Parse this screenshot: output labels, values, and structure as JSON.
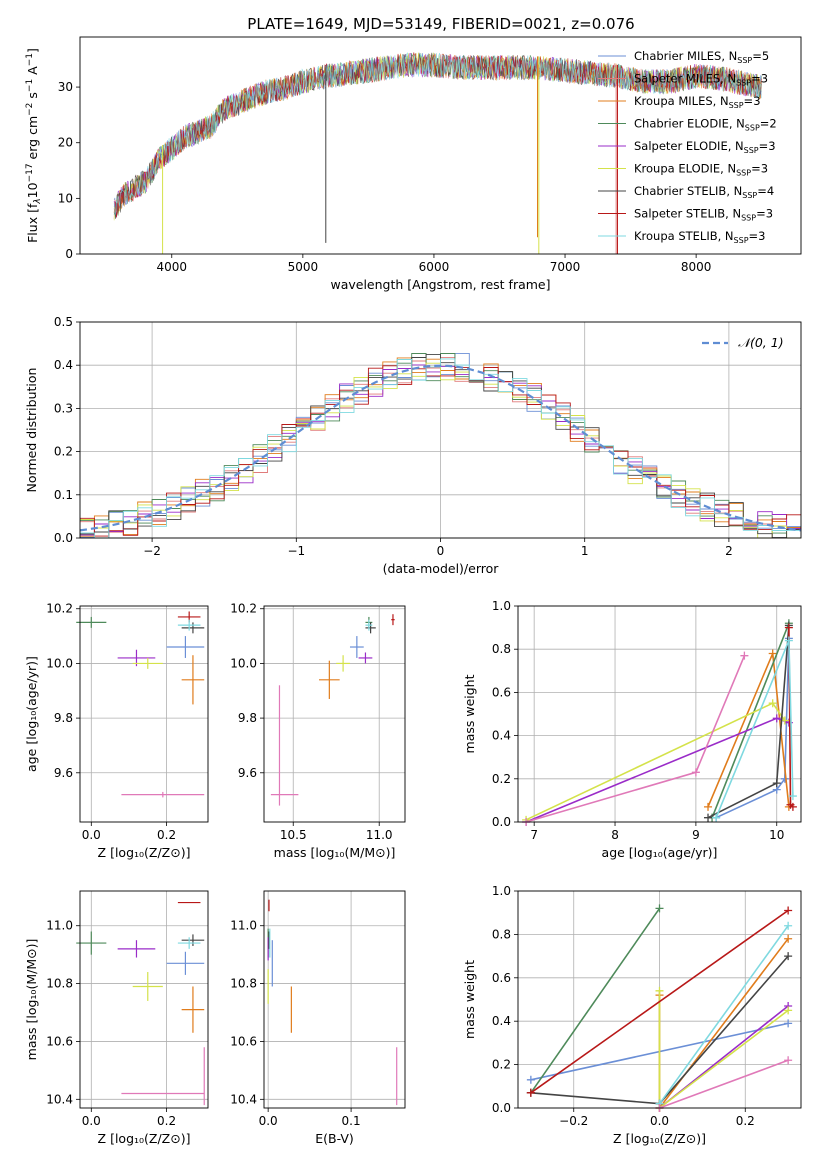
{
  "figure": {
    "title": "PLATE=1649, MJD=53149, FIBERID=0021, z=0.076"
  },
  "series_styles": [
    {
      "name": "Chabrier MILES",
      "nssp": "5",
      "color": "#6b8fd6"
    },
    {
      "name": "Salpeter MILES",
      "nssp": "3",
      "color": "#e07b7b"
    },
    {
      "name": "Kroupa MILES",
      "nssp": "3",
      "color": "#e07c1c"
    },
    {
      "name": "Chabrier ELODIE",
      "nssp": "2",
      "color": "#4e8a5a"
    },
    {
      "name": "Salpeter ELODIE",
      "nssp": "3",
      "color": "#9a2cc8"
    },
    {
      "name": "Kroupa ELODIE",
      "nssp": "3",
      "color": "#d4e24a"
    },
    {
      "name": "Chabrier STELIB",
      "nssp": "4",
      "color": "#444444"
    },
    {
      "name": "Salpeter STELIB",
      "nssp": "3",
      "color": "#b81818"
    },
    {
      "name": "Kroupa STELIB",
      "nssp": "3",
      "color": "#7fd9e0"
    }
  ],
  "chart_data": [
    {
      "id": "spectrum",
      "type": "line",
      "xlabel": "wavelength [Angstrom, rest frame]",
      "ylabel_parts": [
        "Flux [f",
        "λ",
        "10",
        "−17",
        " erg cm",
        "−2",
        " s",
        "−1",
        " A",
        "−1",
        "]"
      ],
      "xlim": [
        3300,
        8800
      ],
      "ylim": [
        0,
        39
      ],
      "xticks": [
        4000,
        5000,
        6000,
        7000,
        8000
      ],
      "yticks": [
        0,
        10,
        20,
        30
      ],
      "grid": false,
      "legend": "top-right",
      "continuum": {
        "x": [
          3560,
          3650,
          3800,
          3900,
          4000,
          4100,
          4200,
          4300,
          4400,
          4500,
          4700,
          4900,
          5000,
          5200,
          5500,
          5800,
          6000,
          6200,
          6500,
          6800,
          7000,
          7200,
          7400,
          7600,
          7800,
          8000,
          8200,
          8500
        ],
        "y": [
          8,
          11,
          13,
          17,
          19,
          21,
          22,
          23,
          26,
          27,
          29,
          30,
          31,
          32,
          33,
          34,
          34,
          33.5,
          33.5,
          33.5,
          33,
          32.5,
          32,
          31,
          31,
          32,
          31.5,
          30
        ]
      },
      "spikes": [
        {
          "x": 3930,
          "color": "#d4e24a",
          "to": 0
        },
        {
          "x": 5175,
          "color": "#444444",
          "to": 2
        },
        {
          "x": 6800,
          "color": "#d4e24a",
          "to": 0
        },
        {
          "x": 6790,
          "color": "#e07c1c",
          "to": 3
        },
        {
          "x": 7390,
          "color": "#e07b7b",
          "to": 0
        },
        {
          "x": 7400,
          "color": "#b81818",
          "to": 0
        }
      ]
    },
    {
      "id": "residuals",
      "type": "histogram",
      "xlabel": "(data-model)/error",
      "ylabel": "Normed distribution",
      "xlim": [
        -2.5,
        2.5
      ],
      "ylim": [
        0,
        0.5
      ],
      "xticks": [
        -2,
        -1,
        0,
        1,
        2
      ],
      "xticklabels": [
        "−2",
        "−1",
        "0",
        "1",
        "2"
      ],
      "yticks": [
        0.0,
        0.1,
        0.2,
        0.3,
        0.4,
        0.5
      ],
      "grid": true,
      "legend": "top-right",
      "legend_label": "𝒩(0, 1)",
      "reference_color": "#5f8dd3",
      "bin_width": 0.1
    },
    {
      "id": "age-vs-Z",
      "type": "scatter",
      "xlabel": "Z [log₁₀(Z/Z⊙)]",
      "ylabel": "age  [log₁₀(age/yr)]",
      "xlim": [
        -0.03,
        0.31
      ],
      "ylim": [
        9.42,
        10.21
      ],
      "xticks": [
        0.0,
        0.2
      ],
      "xticklabels": [
        "0.0",
        "0.2"
      ],
      "yticks": [
        9.6,
        9.8,
        10.0,
        10.2
      ],
      "yticklabels": [
        "9.6",
        "9.8",
        "10.0",
        "10.2"
      ],
      "grid": true,
      "points": [
        {
          "color": "#6b8fd6",
          "x": 0.25,
          "y": 10.06,
          "xerr": 0.05,
          "yerr": 0.04
        },
        {
          "color": "#e07c1c",
          "x": 0.27,
          "y": 9.94,
          "xerr": 0.03,
          "yerr": 0.09
        },
        {
          "color": "#4e8a5a",
          "x": 0.0,
          "y": 10.15,
          "xerr": 0.04,
          "yerr": 0.02
        },
        {
          "color": "#9a2cc8",
          "x": 0.12,
          "y": 10.02,
          "xerr": 0.05,
          "yerr": 0.03
        },
        {
          "color": "#d4e24a",
          "x": 0.15,
          "y": 10.0,
          "xerr": 0.04,
          "yerr": 0.02
        },
        {
          "color": "#444444",
          "x": 0.27,
          "y": 10.13,
          "xerr": 0.03,
          "yerr": 0.02
        },
        {
          "color": "#b81818",
          "x": 0.26,
          "y": 10.17,
          "xerr": 0.03,
          "yerr": 0.02
        },
        {
          "color": "#7fd9e0",
          "x": 0.26,
          "y": 10.14,
          "xerr": 0.03,
          "yerr": 0.02
        },
        {
          "color": "#e079b8",
          "x": 0.19,
          "y": 9.52,
          "xerr": 0.11,
          "yerr": 0.01
        }
      ]
    },
    {
      "id": "age-vs-mass",
      "type": "scatter",
      "xlabel": "mass [log₁₀(M/M⊙)]",
      "ylabel": "",
      "xlim": [
        10.33,
        11.15
      ],
      "ylim": [
        9.42,
        10.21
      ],
      "xticks": [
        10.5,
        11.0
      ],
      "xticklabels": [
        "10.5",
        "11.0"
      ],
      "yticks": [
        9.6,
        9.8,
        10.0,
        10.2
      ],
      "yticklabels": [
        "9.6",
        "9.8",
        "10.0",
        "10.2"
      ],
      "grid": true,
      "points": [
        {
          "color": "#6b8fd6",
          "x": 10.87,
          "y": 10.06,
          "xerr": 0.04,
          "yerr": 0.04
        },
        {
          "color": "#e07c1c",
          "x": 10.71,
          "y": 9.94,
          "xerr": 0.06,
          "yerr": 0.07
        },
        {
          "color": "#4e8a5a",
          "x": 10.94,
          "y": 10.15,
          "xerr": 0.02,
          "yerr": 0.02
        },
        {
          "color": "#9a2cc8",
          "x": 10.92,
          "y": 10.02,
          "xerr": 0.04,
          "yerr": 0.02
        },
        {
          "color": "#d4e24a",
          "x": 10.79,
          "y": 10.0,
          "xerr": 0.04,
          "yerr": 0.03
        },
        {
          "color": "#444444",
          "x": 10.95,
          "y": 10.13,
          "xerr": 0.03,
          "yerr": 0.02
        },
        {
          "color": "#b81818",
          "x": 11.08,
          "y": 10.16,
          "xerr": 0.01,
          "yerr": 0.02
        },
        {
          "color": "#7fd9e0",
          "x": 10.94,
          "y": 10.14,
          "xerr": 0.02,
          "yerr": 0.02
        },
        {
          "color": "#e079b8",
          "x": 10.45,
          "y": 9.52,
          "xerr": 0.08,
          "yerr": 0.0
        },
        {
          "color": "#e079b8",
          "x": 10.42,
          "y": 9.7,
          "xerr": 0.0,
          "yerr": 0.22
        }
      ]
    },
    {
      "id": "mass-weight-vs-age",
      "type": "line",
      "xlabel": "age  [log₁₀(age/yr)]",
      "ylabel": "mass weight",
      "xlim": [
        6.8,
        10.3
      ],
      "ylim": [
        0,
        1
      ],
      "xticks": [
        7,
        8,
        9,
        10
      ],
      "yticks": [
        0.0,
        0.2,
        0.4,
        0.6,
        0.8,
        1.0
      ],
      "grid": true,
      "series": [
        {
          "color": "#6b8fd6",
          "x": [
            9.25,
            10.0,
            10.1,
            10.15
          ],
          "y": [
            0.02,
            0.15,
            0.2,
            0.85
          ]
        },
        {
          "color": "#e07c1c",
          "x": [
            9.15,
            9.95,
            10.15
          ],
          "y": [
            0.07,
            0.78,
            0.07
          ]
        },
        {
          "color": "#4e8a5a",
          "x": [
            9.2,
            10.15
          ],
          "y": [
            0.02,
            0.92
          ]
        },
        {
          "color": "#9a2cc8",
          "x": [
            6.9,
            10.0,
            10.15
          ],
          "y": [
            0.0,
            0.48,
            0.46
          ]
        },
        {
          "color": "#d4e24a",
          "x": [
            6.9,
            9.95,
            10.1
          ],
          "y": [
            0.01,
            0.55,
            0.47
          ]
        },
        {
          "color": "#444444",
          "x": [
            9.15,
            10.0,
            10.15
          ],
          "y": [
            0.02,
            0.18,
            0.91
          ]
        },
        {
          "color": "#b81818",
          "x": [
            10.15,
            10.17,
            10.2
          ],
          "y": [
            0.9,
            0.08,
            0.07
          ]
        },
        {
          "color": "#7fd9e0",
          "x": [
            9.25,
            10.15,
            10.2
          ],
          "y": [
            0.02,
            0.84,
            0.12
          ]
        },
        {
          "color": "#e079b8",
          "x": [
            6.9,
            9.0,
            9.6
          ],
          "y": [
            0.0,
            0.23,
            0.77
          ]
        }
      ]
    },
    {
      "id": "mass-vs-Z",
      "type": "scatter",
      "xlabel": "Z [log₁₀(Z/Z⊙)]",
      "ylabel": "mass [log₁₀(M/M⊙)]",
      "xlim": [
        -0.03,
        0.31
      ],
      "ylim": [
        10.37,
        11.12
      ],
      "xticks": [
        0.0,
        0.2
      ],
      "xticklabels": [
        "0.0",
        "0.2"
      ],
      "yticks": [
        10.4,
        10.6,
        10.8,
        11.0
      ],
      "yticklabels": [
        "10.4",
        "10.6",
        "10.8",
        "11.0"
      ],
      "grid": true,
      "points": [
        {
          "color": "#6b8fd6",
          "x": 0.25,
          "y": 10.87,
          "xerr": 0.05,
          "yerr": 0.04
        },
        {
          "color": "#e07c1c",
          "x": 0.27,
          "y": 10.71,
          "xerr": 0.03,
          "yerr": 0.08
        },
        {
          "color": "#4e8a5a",
          "x": 0.0,
          "y": 10.94,
          "xerr": 0.04,
          "yerr": 0.04
        },
        {
          "color": "#9a2cc8",
          "x": 0.12,
          "y": 10.92,
          "xerr": 0.05,
          "yerr": 0.03
        },
        {
          "color": "#d4e24a",
          "x": 0.15,
          "y": 10.79,
          "xerr": 0.04,
          "yerr": 0.05
        },
        {
          "color": "#444444",
          "x": 0.27,
          "y": 10.95,
          "xerr": 0.03,
          "yerr": 0.02
        },
        {
          "color": "#b81818",
          "x": 0.26,
          "y": 11.08,
          "xerr": 0.03,
          "yerr": 0.0
        },
        {
          "color": "#7fd9e0",
          "x": 0.26,
          "y": 10.94,
          "xerr": 0.03,
          "yerr": 0.02
        },
        {
          "color": "#e079b8",
          "x": 0.19,
          "y": 10.42,
          "xerr": 0.11,
          "yerr": 0.0
        },
        {
          "color": "#e079b8",
          "x": 0.3,
          "y": 10.48,
          "xerr": 0.0,
          "yerr": 0.1
        }
      ]
    },
    {
      "id": "mass-vs-ebv",
      "type": "scatter",
      "xlabel": "E(B-V)",
      "ylabel": "",
      "xlim": [
        -0.005,
        0.165
      ],
      "ylim": [
        10.37,
        11.12
      ],
      "xticks": [
        0.0,
        0.1
      ],
      "xticklabels": [
        "0.0",
        "0.1"
      ],
      "yticks": [
        10.4,
        10.6,
        10.8,
        11.0
      ],
      "yticklabels": [
        "10.4",
        "10.6",
        "10.8",
        "11.0"
      ],
      "grid": true,
      "points": [
        {
          "color": "#6b8fd6",
          "x": 0.005,
          "y": 10.87,
          "xerr": 0.0,
          "yerr": 0.08
        },
        {
          "color": "#e07c1c",
          "x": 0.028,
          "y": 10.71,
          "xerr": 0.0,
          "yerr": 0.08
        },
        {
          "color": "#4e8a5a",
          "x": 0.0,
          "y": 10.94,
          "xerr": 0.0,
          "yerr": 0.05
        },
        {
          "color": "#9a2cc8",
          "x": 0.0,
          "y": 10.92,
          "xerr": 0.0,
          "yerr": 0.04
        },
        {
          "color": "#d4e24a",
          "x": 0.0,
          "y": 10.79,
          "xerr": 0.0,
          "yerr": 0.06
        },
        {
          "color": "#444444",
          "x": 0.001,
          "y": 10.95,
          "xerr": 0.0,
          "yerr": 0.03
        },
        {
          "color": "#b81818",
          "x": 0.001,
          "y": 11.07,
          "xerr": 0.0,
          "yerr": 0.02
        },
        {
          "color": "#7fd9e0",
          "x": 0.002,
          "y": 10.94,
          "xerr": 0.0,
          "yerr": 0.05
        },
        {
          "color": "#e079b8",
          "x": 0.155,
          "y": 10.48,
          "xerr": 0.0,
          "yerr": 0.1
        }
      ]
    },
    {
      "id": "mass-weight-vs-Z",
      "type": "line",
      "xlabel": "Z [log₁₀(Z/Z⊙)]",
      "ylabel": "mass weight",
      "xlim": [
        -0.33,
        0.33
      ],
      "ylim": [
        0,
        1
      ],
      "xticks": [
        -0.2,
        0.0,
        0.2
      ],
      "xticklabels": [
        "−0.2",
        "0.0",
        "0.2"
      ],
      "yticks": [
        0.0,
        0.2,
        0.4,
        0.6,
        0.8,
        1.0
      ],
      "grid": true,
      "series": [
        {
          "color": "#6b8fd6",
          "x": [
            -0.3,
            0.3
          ],
          "y": [
            0.13,
            0.39
          ]
        },
        {
          "color": "#e07c1c",
          "x": [
            0.0,
            0.0,
            0.3
          ],
          "y": [
            0.52,
            0.0,
            0.78
          ]
        },
        {
          "color": "#4e8a5a",
          "x": [
            -0.3,
            0.0
          ],
          "y": [
            0.07,
            0.92
          ]
        },
        {
          "color": "#9a2cc8",
          "x": [
            0.0,
            0.3
          ],
          "y": [
            0.0,
            0.47
          ]
        },
        {
          "color": "#d4e24a",
          "x": [
            0.0,
            0.0,
            0.3
          ],
          "y": [
            0.54,
            0.0,
            0.45
          ]
        },
        {
          "color": "#444444",
          "x": [
            -0.3,
            0.0,
            0.3
          ],
          "y": [
            0.07,
            0.02,
            0.7
          ]
        },
        {
          "color": "#b81818",
          "x": [
            -0.3,
            0.3
          ],
          "y": [
            0.07,
            0.91
          ]
        },
        {
          "color": "#7fd9e0",
          "x": [
            0.0,
            0.3
          ],
          "y": [
            0.02,
            0.84
          ]
        },
        {
          "color": "#e079b8",
          "x": [
            0.0,
            0.3
          ],
          "y": [
            0.0,
            0.22
          ]
        }
      ]
    }
  ]
}
